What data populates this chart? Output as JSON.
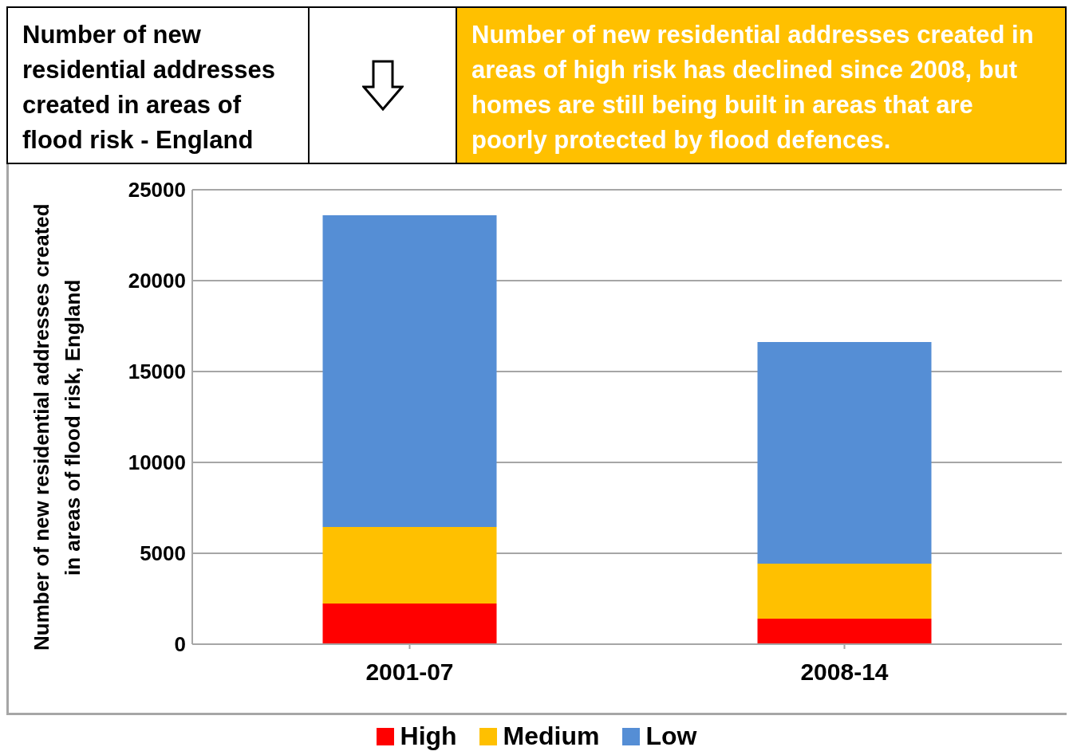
{
  "chart_data": {
    "type": "bar",
    "title": "Number of new residential addresses created  in areas of flood risk - England",
    "subtitle": "Number of new residential addresses  created in areas of high risk has declined since 2008, but homes are still being built in areas that are poorly protected by flood defences.",
    "ylabel": "Number of new residential addresses created in areas of flood risk, England",
    "categories": [
      "2001-07",
      "2008-14"
    ],
    "series": [
      {
        "name": "High",
        "color": "#ff0000",
        "values": [
          2240,
          1400
        ]
      },
      {
        "name": "Medium",
        "color": "#ffc000",
        "values": [
          4210,
          3030
        ]
      },
      {
        "name": "Low",
        "color": "#558ed5",
        "values": [
          17150,
          12190
        ]
      }
    ],
    "stacked": true,
    "ylim": [
      0,
      25000
    ],
    "yticks": [
      0,
      5000,
      10000,
      15000,
      20000,
      25000
    ],
    "grid": "y",
    "legend": "bottom"
  }
}
